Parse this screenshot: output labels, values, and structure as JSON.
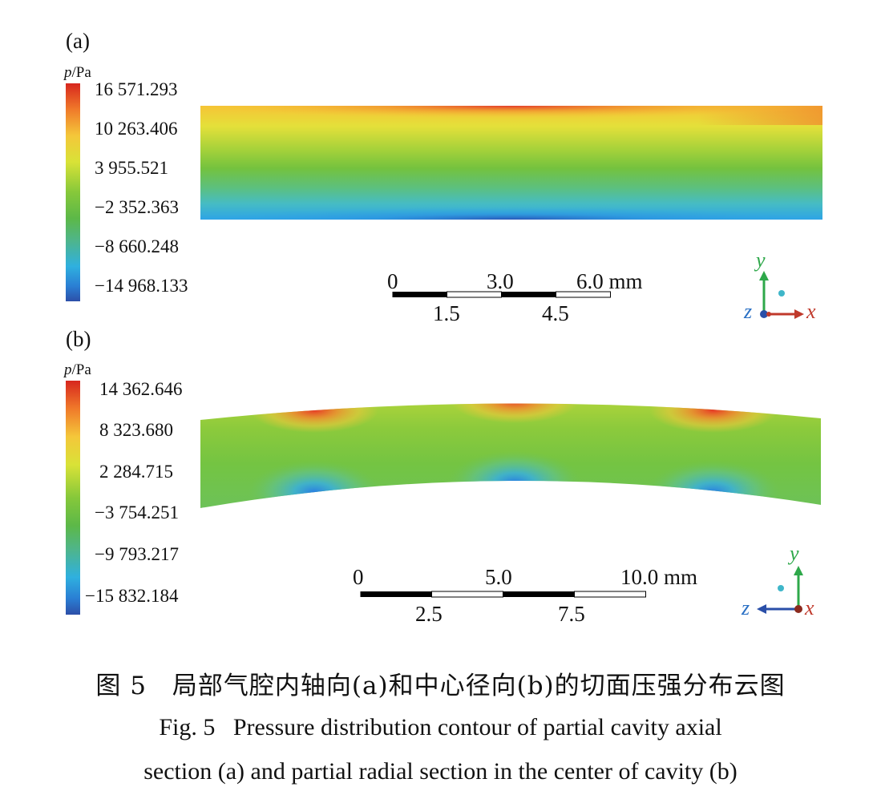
{
  "panel_a": {
    "label": "(a)",
    "colorbar": {
      "unit_var": "p",
      "unit_rest": "/Pa",
      "ticks": [
        "16 571.293",
        "10 263.406",
        "3 955.521",
        "−2 352.363",
        "−8 660.248",
        "−14 968.133"
      ]
    },
    "scale": {
      "labels_top": [
        "0",
        "3.0",
        "6.0 mm"
      ],
      "labels_bottom": [
        "1.5",
        "4.5"
      ]
    },
    "axes": {
      "y": "y",
      "x": "x",
      "z": "z"
    }
  },
  "panel_b": {
    "label": "(b)",
    "colorbar": {
      "unit_var": "p",
      "unit_rest": "/Pa",
      "ticks": [
        "14 362.646",
        "8 323.680",
        "2 284.715",
        "−3 754.251",
        "−9 793.217",
        "−15 832.184"
      ]
    },
    "scale": {
      "labels_top": [
        "0",
        "5.0",
        "10.0 mm"
      ],
      "labels_bottom": [
        "2.5",
        "7.5"
      ]
    },
    "axes": {
      "y": "y",
      "x": "x",
      "z": "z"
    }
  },
  "caption": {
    "cn": "图 5　局部气腔内轴向(a)和中心径向(b)的切面压强分布云图",
    "en_line1": "Fig. 5  Pressure distribution contour of partial cavity axial",
    "en_line2": "section (a) and partial radial section in the center of cavity (b)"
  },
  "colors": {
    "max": "#d7261e",
    "high": "#f4c73a",
    "mid": "#86c83a",
    "low": "#2fb0df",
    "min": "#2c4fa8",
    "axis_y": "#2ea84a",
    "axis_x": "#c0392b",
    "axis_z": "#2a4fa8",
    "dot": "#3fb6c9"
  }
}
